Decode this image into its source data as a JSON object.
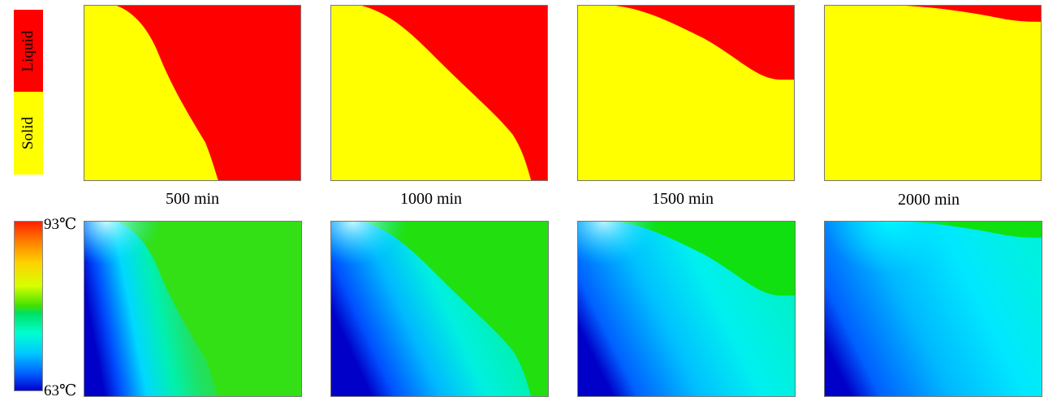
{
  "phase_legend": {
    "liquid_label": "Liquid",
    "solid_label": "Solid",
    "liquid_color": "#ff0000",
    "solid_color": "#ffff00"
  },
  "temperature_legend": {
    "max_label": "93℃",
    "min_label": "63℃",
    "colormap": [
      "#ff2000",
      "#ffa000",
      "#dcff00",
      "#00e000",
      "#00ffc8",
      "#00c8ff",
      "#0060ff",
      "#0000d0"
    ]
  },
  "time_labels": [
    "500 min",
    "1000 min",
    "1500 min",
    "2000 min"
  ]
}
